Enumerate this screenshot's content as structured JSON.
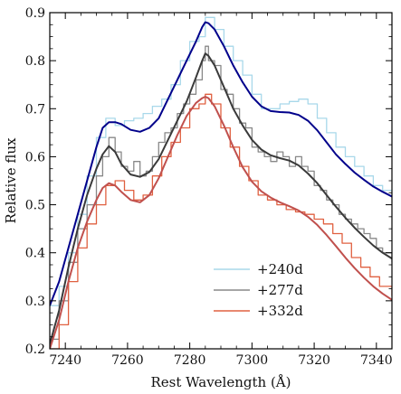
{
  "chart_data": {
    "type": "line",
    "title": "",
    "xlabel": "Rest Wavelength (Å)",
    "ylabel": "Relative flux",
    "xlim": [
      7235,
      7345
    ],
    "ylim": [
      0.2,
      0.9
    ],
    "xticks": [
      7240,
      7260,
      7280,
      7300,
      7320,
      7340
    ],
    "yticks": [
      0.2,
      0.3,
      0.4,
      0.5,
      0.6,
      0.7,
      0.8,
      0.9
    ],
    "grid": false,
    "legend_position": "lower-right",
    "series": [
      {
        "name": "+240d",
        "color": "#a8d8ea",
        "kind": "data",
        "x": [
          7235,
          7238,
          7241,
          7244,
          7247,
          7250,
          7253,
          7256,
          7259,
          7262,
          7265,
          7268,
          7271,
          7274,
          7277,
          7280,
          7283,
          7285,
          7288,
          7291,
          7294,
          7297,
          7300,
          7303,
          7306,
          7309,
          7312,
          7315,
          7318,
          7321,
          7324,
          7327,
          7330,
          7333,
          7336,
          7339,
          7342,
          7345
        ],
        "y": [
          0.29,
          0.33,
          0.4,
          0.48,
          0.56,
          0.64,
          0.68,
          0.665,
          0.675,
          0.68,
          0.69,
          0.705,
          0.72,
          0.75,
          0.8,
          0.84,
          0.85,
          0.89,
          0.865,
          0.83,
          0.8,
          0.77,
          0.73,
          0.7,
          0.7,
          0.71,
          0.715,
          0.72,
          0.71,
          0.68,
          0.65,
          0.62,
          0.6,
          0.58,
          0.56,
          0.54,
          0.53,
          0.52
        ]
      },
      {
        "name": "+277d",
        "color": "#888888",
        "kind": "data",
        "x": [
          7235,
          7238,
          7241,
          7244,
          7247,
          7250,
          7252,
          7254,
          7256,
          7258,
          7260,
          7262,
          7264,
          7266,
          7268,
          7270,
          7272,
          7274,
          7276,
          7278,
          7280,
          7282,
          7284,
          7285,
          7286,
          7288,
          7290,
          7292,
          7294,
          7296,
          7298,
          7300,
          7302,
          7304,
          7306,
          7308,
          7310,
          7312,
          7314,
          7316,
          7318,
          7320,
          7322,
          7324,
          7326,
          7328,
          7330,
          7332,
          7334,
          7336,
          7338,
          7340,
          7342,
          7345
        ],
        "y": [
          0.22,
          0.3,
          0.38,
          0.45,
          0.5,
          0.56,
          0.6,
          0.64,
          0.61,
          0.58,
          0.57,
          0.59,
          0.56,
          0.57,
          0.6,
          0.63,
          0.65,
          0.66,
          0.69,
          0.71,
          0.73,
          0.76,
          0.8,
          0.83,
          0.8,
          0.79,
          0.74,
          0.73,
          0.7,
          0.67,
          0.66,
          0.62,
          0.61,
          0.6,
          0.59,
          0.61,
          0.6,
          0.58,
          0.6,
          0.58,
          0.57,
          0.54,
          0.53,
          0.51,
          0.5,
          0.48,
          0.47,
          0.46,
          0.45,
          0.44,
          0.43,
          0.41,
          0.4,
          0.38
        ]
      },
      {
        "name": "+332d",
        "color": "#e06040",
        "kind": "data",
        "x": [
          7235,
          7238,
          7241,
          7244,
          7247,
          7250,
          7253,
          7256,
          7259,
          7262,
          7265,
          7268,
          7271,
          7274,
          7277,
          7280,
          7283,
          7285,
          7287,
          7290,
          7293,
          7296,
          7299,
          7302,
          7305,
          7308,
          7311,
          7314,
          7317,
          7320,
          7323,
          7326,
          7329,
          7332,
          7335,
          7338,
          7341,
          7345
        ],
        "y": [
          0.2,
          0.25,
          0.34,
          0.41,
          0.46,
          0.5,
          0.54,
          0.55,
          0.53,
          0.51,
          0.52,
          0.56,
          0.6,
          0.63,
          0.66,
          0.7,
          0.71,
          0.73,
          0.71,
          0.66,
          0.62,
          0.58,
          0.55,
          0.52,
          0.51,
          0.5,
          0.49,
          0.485,
          0.48,
          0.47,
          0.46,
          0.44,
          0.42,
          0.39,
          0.37,
          0.35,
          0.33,
          0.31
        ]
      },
      {
        "name": "",
        "color": "#00008b",
        "kind": "model",
        "x": [
          7235,
          7238,
          7241,
          7244,
          7247,
          7250,
          7252,
          7254,
          7256,
          7258,
          7261,
          7264,
          7267,
          7270,
          7273,
          7276,
          7279,
          7282,
          7284,
          7285,
          7286,
          7288,
          7291,
          7294,
          7297,
          7300,
          7303,
          7306,
          7309,
          7312,
          7315,
          7318,
          7321,
          7324,
          7327,
          7330,
          7333,
          7336,
          7339,
          7342,
          7345
        ],
        "y": [
          0.29,
          0.34,
          0.41,
          0.48,
          0.55,
          0.62,
          0.66,
          0.672,
          0.672,
          0.668,
          0.656,
          0.652,
          0.66,
          0.68,
          0.72,
          0.76,
          0.8,
          0.84,
          0.87,
          0.88,
          0.878,
          0.865,
          0.83,
          0.79,
          0.755,
          0.725,
          0.705,
          0.695,
          0.693,
          0.692,
          0.687,
          0.675,
          0.655,
          0.63,
          0.605,
          0.585,
          0.567,
          0.552,
          0.538,
          0.527,
          0.517
        ]
      },
      {
        "name": "",
        "color": "#3a3a3a",
        "kind": "model",
        "x": [
          7235,
          7238,
          7241,
          7244,
          7247,
          7250,
          7252,
          7254,
          7256,
          7258,
          7261,
          7264,
          7267,
          7270,
          7273,
          7276,
          7279,
          7282,
          7284,
          7285,
          7286,
          7288,
          7291,
          7294,
          7297,
          7300,
          7303,
          7306,
          7309,
          7312,
          7315,
          7318,
          7321,
          7324,
          7327,
          7330,
          7333,
          7336,
          7339,
          7342,
          7345
        ],
        "y": [
          0.21,
          0.28,
          0.37,
          0.45,
          0.52,
          0.575,
          0.605,
          0.622,
          0.61,
          0.585,
          0.563,
          0.558,
          0.568,
          0.595,
          0.635,
          0.675,
          0.715,
          0.765,
          0.8,
          0.815,
          0.81,
          0.79,
          0.745,
          0.7,
          0.665,
          0.635,
          0.615,
          0.603,
          0.597,
          0.592,
          0.582,
          0.565,
          0.545,
          0.52,
          0.496,
          0.473,
          0.452,
          0.433,
          0.415,
          0.4,
          0.388
        ]
      },
      {
        "name": "",
        "color": "#c0504d",
        "kind": "model",
        "x": [
          7235,
          7238,
          7241,
          7244,
          7247,
          7250,
          7252,
          7254,
          7256,
          7258,
          7261,
          7264,
          7267,
          7270,
          7273,
          7276,
          7279,
          7282,
          7284,
          7285,
          7286,
          7288,
          7291,
          7294,
          7297,
          7300,
          7303,
          7306,
          7309,
          7312,
          7315,
          7318,
          7321,
          7324,
          7327,
          7330,
          7333,
          7336,
          7339,
          7342,
          7345
        ],
        "y": [
          0.2,
          0.26,
          0.34,
          0.41,
          0.465,
          0.51,
          0.535,
          0.545,
          0.54,
          0.527,
          0.51,
          0.505,
          0.52,
          0.555,
          0.6,
          0.645,
          0.685,
          0.712,
          0.722,
          0.725,
          0.722,
          0.705,
          0.665,
          0.62,
          0.578,
          0.548,
          0.528,
          0.515,
          0.505,
          0.497,
          0.488,
          0.475,
          0.458,
          0.437,
          0.414,
          0.39,
          0.368,
          0.348,
          0.33,
          0.315,
          0.302
        ]
      }
    ]
  }
}
